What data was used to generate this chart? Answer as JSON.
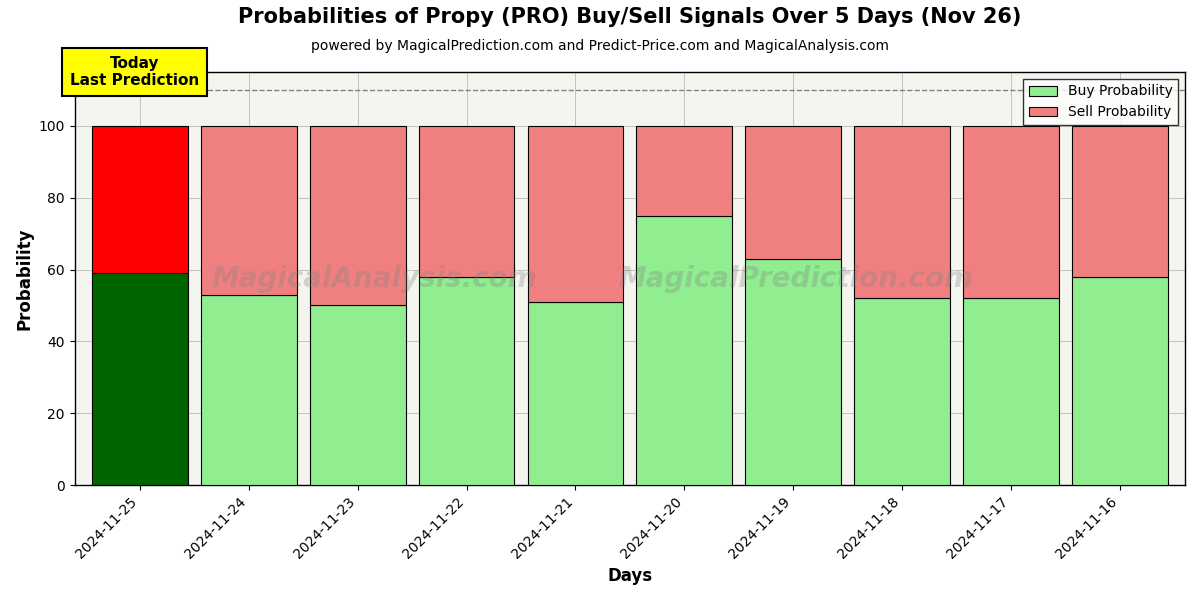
{
  "title": "Probabilities of Propy (PRO) Buy/Sell Signals Over 5 Days (Nov 26)",
  "subtitle": "powered by MagicalPrediction.com and Predict-Price.com and MagicalAnalysis.com",
  "xlabel": "Days",
  "ylabel": "Probability",
  "dates": [
    "2024-11-25",
    "2024-11-24",
    "2024-11-23",
    "2024-11-22",
    "2024-11-21",
    "2024-11-20",
    "2024-11-19",
    "2024-11-18",
    "2024-11-17",
    "2024-11-16"
  ],
  "buy_values": [
    59,
    53,
    50,
    58,
    51,
    75,
    63,
    52,
    52,
    58
  ],
  "sell_values": [
    41,
    47,
    50,
    42,
    49,
    25,
    37,
    48,
    48,
    42
  ],
  "today_buy_color": "#006400",
  "today_sell_color": "#ff0000",
  "buy_color": "#90EE90",
  "sell_color": "#F08080",
  "today_label_bg": "#ffff00",
  "today_label_text": "Today\nLast Prediction",
  "ylim": [
    0,
    115
  ],
  "dashed_line_y": 110,
  "watermark1": "MagicalAnalysis.com",
  "watermark2": "MagicalPrediction.com",
  "bar_width": 0.88,
  "legend_buy_label": "Buy Probability",
  "legend_sell_label": "Sell Probability",
  "bg_color": "#f5f5f0"
}
